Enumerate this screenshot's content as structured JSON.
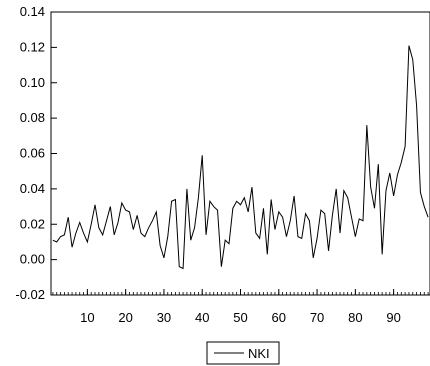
{
  "chart_data": {
    "type": "line",
    "title": "",
    "xlabel": "",
    "ylabel": "",
    "xlim": [
      1,
      99
    ],
    "ylim": [
      -0.02,
      0.14
    ],
    "x_ticks": [
      10,
      20,
      30,
      40,
      50,
      60,
      70,
      80,
      90
    ],
    "y_ticks": [
      "-0.02",
      "0.00",
      "0.02",
      "0.04",
      "0.06",
      "0.08",
      "0.10",
      "0.12",
      "0.14"
    ],
    "grid": false,
    "legend": {
      "placement": "bottom-center"
    },
    "series": [
      {
        "name": "NKI",
        "color": "#000000",
        "x": [
          1,
          2,
          3,
          4,
          5,
          6,
          7,
          8,
          9,
          10,
          11,
          12,
          13,
          14,
          15,
          16,
          17,
          18,
          19,
          20,
          21,
          22,
          23,
          24,
          25,
          26,
          27,
          28,
          29,
          30,
          31,
          32,
          33,
          34,
          35,
          36,
          37,
          38,
          39,
          40,
          41,
          42,
          43,
          44,
          45,
          46,
          47,
          48,
          49,
          50,
          51,
          52,
          53,
          54,
          55,
          56,
          57,
          58,
          59,
          60,
          61,
          62,
          63,
          64,
          65,
          66,
          67,
          68,
          69,
          70,
          71,
          72,
          73,
          74,
          75,
          76,
          77,
          78,
          79,
          80,
          81,
          82,
          83,
          84,
          85,
          86,
          87,
          88,
          89,
          90,
          91,
          92,
          93,
          94,
          95,
          96,
          97,
          98,
          99
        ],
        "values": [
          0.011,
          0.01,
          0.013,
          0.014,
          0.024,
          0.007,
          0.015,
          0.021,
          0.015,
          0.01,
          0.02,
          0.031,
          0.018,
          0.014,
          0.022,
          0.03,
          0.014,
          0.021,
          0.032,
          0.028,
          0.027,
          0.017,
          0.025,
          0.015,
          0.013,
          0.018,
          0.022,
          0.027,
          0.008,
          0.001,
          0.013,
          0.033,
          0.034,
          -0.004,
          -0.005,
          0.04,
          0.011,
          0.018,
          0.035,
          0.059,
          0.014,
          0.033,
          0.03,
          0.028,
          -0.004,
          0.011,
          0.009,
          0.029,
          0.033,
          0.031,
          0.035,
          0.027,
          0.041,
          0.015,
          0.012,
          0.029,
          0.003,
          0.034,
          0.017,
          0.027,
          0.024,
          0.013,
          0.022,
          0.036,
          0.013,
          0.012,
          0.026,
          0.022,
          0.001,
          0.012,
          0.028,
          0.026,
          0.005,
          0.025,
          0.04,
          0.015,
          0.039,
          0.035,
          0.024,
          0.013,
          0.023,
          0.022,
          0.076,
          0.041,
          0.029,
          0.054,
          0.003,
          0.039,
          0.049,
          0.036,
          0.048,
          0.055,
          0.064,
          0.121,
          0.113,
          0.087,
          0.038,
          0.03,
          0.024
        ]
      }
    ]
  }
}
